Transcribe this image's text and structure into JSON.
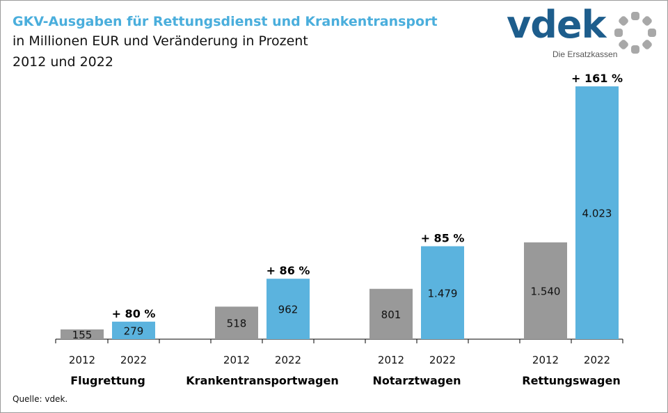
{
  "header": {
    "title": "GKV-Ausgaben für Rettungsdienst und Krankentransport",
    "subtitle": "in Millionen EUR und Veränderung in Prozent",
    "period": "2012 und 2022"
  },
  "logo": {
    "word": "vdek",
    "tagline": "Die Ersatzkassen"
  },
  "footer": {
    "source": "Quelle: vdek."
  },
  "colors": {
    "title": "#4aaedc",
    "bar_2012": "#999999",
    "bar_2022": "#5bb3de",
    "logo_blue": "#1d5d8c",
    "logo_ring": "#a8a8a8"
  },
  "chart_data": {
    "type": "bar",
    "categories": [
      "Flugrettung",
      "Krankentransportwagen",
      "Notarztwagen",
      "Rettungswagen"
    ],
    "x_sublabels": [
      "2012",
      "2022"
    ],
    "series": [
      {
        "name": "2012",
        "values": [
          155,
          518,
          801,
          1540
        ],
        "labels": [
          "155",
          "518",
          "801",
          "1.540"
        ]
      },
      {
        "name": "2022",
        "values": [
          279,
          962,
          1479,
          4023
        ],
        "labels": [
          "279",
          "962",
          "1.479",
          "4.023"
        ]
      }
    ],
    "change_labels": [
      "+ 80 %",
      "+ 86 %",
      "+ 85 %",
      "+ 161 %"
    ],
    "ylim": [
      0,
      4023
    ],
    "grid": false,
    "legend": "none"
  }
}
